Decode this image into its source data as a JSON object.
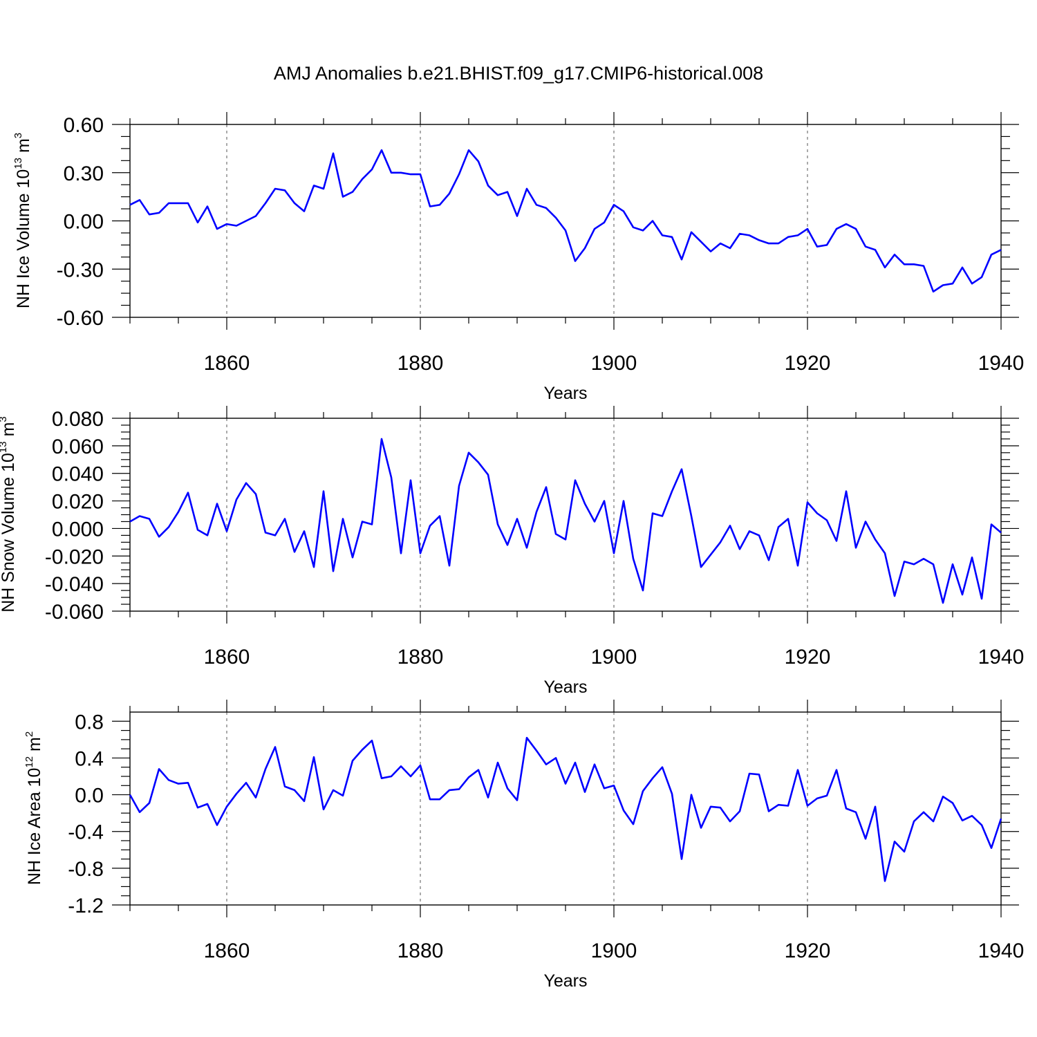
{
  "chart_data": [
    {
      "type": "line",
      "title": "AMJ Anomalies b.e21.BHIST.f09_g17.CMIP6-historical.008",
      "ylabel": "NH Ice Volume 10",
      "ylabel_exp": "13",
      "ylabel_unit": " m",
      "ylabel_unit_exp": "3",
      "xlabel": "Years",
      "xlim": [
        1850,
        1940
      ],
      "ylim": [
        -0.6,
        0.6
      ],
      "yticks": [
        -0.6,
        -0.3,
        0.0,
        0.3,
        0.6
      ],
      "ytick_labels": [
        "-0.60",
        "-0.30",
        "0.00",
        "0.30",
        "0.60"
      ],
      "xticks": [
        1860,
        1880,
        1900,
        1920,
        1940
      ],
      "xtick_labels": [
        "1860",
        "1880",
        "1900",
        "1920",
        "1940"
      ],
      "grid": "dashed vertical at major x ticks",
      "x_start": 1850,
      "values": [
        0.1,
        0.13,
        0.04,
        0.05,
        0.11,
        0.11,
        0.11,
        -0.01,
        0.09,
        -0.05,
        -0.02,
        -0.03,
        0.0,
        0.03,
        0.11,
        0.2,
        0.19,
        0.11,
        0.06,
        0.22,
        0.2,
        0.42,
        0.15,
        0.18,
        0.26,
        0.32,
        0.44,
        0.3,
        0.3,
        0.29,
        0.29,
        0.09,
        0.1,
        0.17,
        0.29,
        0.44,
        0.37,
        0.22,
        0.16,
        0.18,
        0.03,
        0.2,
        0.1,
        0.08,
        0.02,
        -0.06,
        -0.25,
        -0.17,
        -0.05,
        -0.01,
        0.1,
        0.06,
        -0.04,
        -0.06,
        0.0,
        -0.09,
        -0.1,
        -0.24,
        -0.07,
        -0.13,
        -0.19,
        -0.14,
        -0.17,
        -0.08,
        -0.09,
        -0.12,
        -0.14,
        -0.14,
        -0.1,
        -0.09,
        -0.05,
        -0.16,
        -0.15,
        -0.05,
        -0.02,
        -0.05,
        -0.16,
        -0.18,
        -0.29,
        -0.21,
        -0.27,
        -0.27,
        -0.28,
        -0.44,
        -0.4,
        -0.39,
        -0.29,
        -0.39,
        -0.35,
        -0.21,
        -0.18
      ]
    },
    {
      "type": "line",
      "ylabel": "NH Snow Volume 10",
      "ylabel_exp": "13",
      "ylabel_unit": " m",
      "ylabel_unit_exp": "3",
      "xlabel": "Years",
      "xlim": [
        1850,
        1940
      ],
      "ylim": [
        -0.06,
        0.08
      ],
      "yticks": [
        -0.06,
        -0.04,
        -0.02,
        0.0,
        0.02,
        0.04,
        0.06,
        0.08
      ],
      "ytick_labels": [
        "-0.060",
        "-0.040",
        "-0.020",
        "0.000",
        "0.020",
        "0.040",
        "0.060",
        "0.080"
      ],
      "xticks": [
        1860,
        1880,
        1900,
        1920,
        1940
      ],
      "xtick_labels": [
        "1860",
        "1880",
        "1900",
        "1920",
        "1940"
      ],
      "grid": "dashed vertical at major x ticks",
      "x_start": 1850,
      "values": [
        0.005,
        0.009,
        0.007,
        -0.006,
        0.001,
        0.012,
        0.026,
        -0.001,
        -0.005,
        0.018,
        -0.002,
        0.021,
        0.033,
        0.025,
        -0.003,
        -0.005,
        0.007,
        -0.017,
        -0.002,
        -0.028,
        0.027,
        -0.031,
        0.007,
        -0.021,
        0.005,
        0.003,
        0.065,
        0.037,
        -0.018,
        0.035,
        -0.018,
        0.002,
        0.009,
        -0.027,
        0.031,
        0.055,
        0.048,
        0.039,
        0.003,
        -0.012,
        0.007,
        -0.014,
        0.012,
        0.03,
        -0.004,
        -0.008,
        0.035,
        0.018,
        0.005,
        0.02,
        -0.018,
        0.02,
        -0.022,
        -0.045,
        0.011,
        0.009,
        0.027,
        0.043,
        0.009,
        -0.028,
        -0.019,
        -0.01,
        0.002,
        -0.015,
        -0.002,
        -0.005,
        -0.023,
        0.001,
        0.007,
        -0.027,
        0.019,
        0.011,
        0.006,
        -0.009,
        0.027,
        -0.014,
        0.005,
        -0.008,
        -0.018,
        -0.049,
        -0.024,
        -0.026,
        -0.022,
        -0.026,
        -0.054,
        -0.026,
        -0.048,
        -0.021,
        -0.051,
        0.003,
        -0.003
      ]
    },
    {
      "type": "line",
      "ylabel": "NH Ice Area 10",
      "ylabel_exp": "12",
      "ylabel_unit": " m",
      "ylabel_unit_exp": "2",
      "xlabel": "Years",
      "xlim": [
        1850,
        1940
      ],
      "ylim": [
        -1.2,
        0.9
      ],
      "yticks": [
        -1.2,
        -0.8,
        -0.4,
        0.0,
        0.4,
        0.8
      ],
      "ytick_labels": [
        "-1.2",
        "-0.8",
        "-0.4",
        "0.0",
        "0.4",
        "0.8"
      ],
      "xticks": [
        1860,
        1880,
        1900,
        1920,
        1940
      ],
      "xtick_labels": [
        "1860",
        "1880",
        "1900",
        "1920",
        "1940"
      ],
      "grid": "dashed vertical at major x ticks",
      "x_start": 1850,
      "values": [
        0.0,
        -0.19,
        -0.09,
        0.28,
        0.16,
        0.12,
        0.13,
        -0.14,
        -0.1,
        -0.33,
        -0.13,
        0.01,
        0.13,
        -0.03,
        0.28,
        0.52,
        0.09,
        0.05,
        -0.07,
        0.41,
        -0.16,
        0.05,
        -0.01,
        0.37,
        0.49,
        0.59,
        0.18,
        0.2,
        0.31,
        0.2,
        0.32,
        -0.05,
        -0.05,
        0.05,
        0.06,
        0.19,
        0.27,
        -0.03,
        0.35,
        0.07,
        -0.06,
        0.62,
        0.48,
        0.33,
        0.4,
        0.12,
        0.35,
        0.03,
        0.33,
        0.07,
        0.1,
        -0.17,
        -0.32,
        0.04,
        0.18,
        0.3,
        0.01,
        -0.7,
        0.0,
        -0.36,
        -0.13,
        -0.14,
        -0.29,
        -0.18,
        0.23,
        0.22,
        -0.18,
        -0.11,
        -0.12,
        0.27,
        -0.12,
        -0.04,
        -0.01,
        0.27,
        -0.15,
        -0.19,
        -0.48,
        -0.13,
        -0.94,
        -0.51,
        -0.62,
        -0.29,
        -0.19,
        -0.29,
        -0.02,
        -0.09,
        -0.28,
        -0.23,
        -0.33,
        -0.58,
        -0.26
      ]
    }
  ]
}
